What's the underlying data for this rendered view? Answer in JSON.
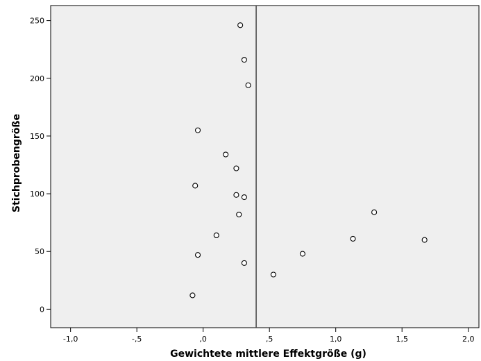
{
  "chart_data": {
    "type": "scatter",
    "title": "",
    "xlabel": "Gewichtete mittlere Effektgröße (g)",
    "ylabel": "Stichprobengröße",
    "xlim": [
      -1.15,
      2.08
    ],
    "ylim": [
      -16,
      263
    ],
    "x_ticks": [
      -1.0,
      -0.5,
      0.0,
      0.5,
      1.0,
      1.5,
      2.0
    ],
    "x_tick_labels": [
      "-1,0",
      "-,5",
      ",0",
      ",5",
      "1,0",
      "1,5",
      "2,0"
    ],
    "y_ticks": [
      0,
      50,
      100,
      150,
      200,
      250
    ],
    "y_tick_labels": [
      "0",
      "50",
      "100",
      "150",
      "200",
      "250"
    ],
    "reference_line_x": 0.4,
    "grid": false,
    "legend": "none",
    "colors": {
      "plot_background": "#efefef",
      "frame": "#000000",
      "marker_stroke": "#000000",
      "marker_fill": "#ffffff",
      "reference_line": "#444444"
    },
    "points": [
      {
        "x": 0.28,
        "y": 246
      },
      {
        "x": 0.31,
        "y": 216
      },
      {
        "x": 0.34,
        "y": 194
      },
      {
        "x": -0.04,
        "y": 155
      },
      {
        "x": 0.17,
        "y": 134
      },
      {
        "x": 0.25,
        "y": 122
      },
      {
        "x": -0.06,
        "y": 107
      },
      {
        "x": 0.25,
        "y": 99
      },
      {
        "x": 0.31,
        "y": 97
      },
      {
        "x": 1.29,
        "y": 84
      },
      {
        "x": 0.27,
        "y": 82
      },
      {
        "x": 0.1,
        "y": 64
      },
      {
        "x": 1.13,
        "y": 61
      },
      {
        "x": 1.67,
        "y": 60
      },
      {
        "x": 0.75,
        "y": 48
      },
      {
        "x": -0.04,
        "y": 47
      },
      {
        "x": 0.31,
        "y": 40
      },
      {
        "x": 0.53,
        "y": 30
      },
      {
        "x": -0.08,
        "y": 12
      }
    ]
  }
}
